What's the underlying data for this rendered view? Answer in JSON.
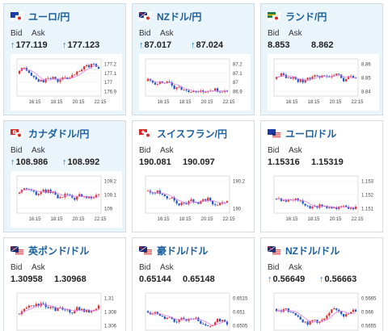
{
  "labels": {
    "bid": "Bid",
    "ask": "Ask"
  },
  "colors": {
    "up": "#e03030",
    "down": "#1e55c8",
    "ma": "#e27be8",
    "link": "#1a5f9e",
    "arrow": "#1a73c9"
  },
  "cards": [
    {
      "name": "ユーロ/円",
      "flag": "eu-jp-flag",
      "bid": "177.119",
      "ask": "177.123",
      "arrow": "↑",
      "ticks_y": [
        "177.2",
        "177.1",
        "177",
        "176.9"
      ],
      "ticks_x": [
        "16:15",
        "18:15",
        "20:15",
        "22:15"
      ]
    },
    {
      "name": "NZドル/円",
      "flag": "nz-jp-flag",
      "bid": "87.017",
      "ask": "87.024",
      "arrow": "↑",
      "ticks_y": [
        "87.2",
        "87.1",
        "87",
        "86.9"
      ],
      "ticks_x": [
        "16:15",
        "18:15",
        "20:15",
        "22:15"
      ]
    },
    {
      "name": "ランド/円",
      "flag": "za-jp-flag",
      "bid": "8.853",
      "ask": "8.862",
      "arrow": "",
      "ticks_y": [
        "8.86",
        "8.85",
        "8.84"
      ],
      "ticks_x": [
        "16:15",
        "18:15",
        "20:15",
        "22:15"
      ]
    },
    {
      "name": "カナダドル/円",
      "flag": "ca-jp-flag",
      "bid": "108.986",
      "ask": "108.992",
      "arrow": "↑",
      "ticks_y": [
        "109.2",
        "109.1",
        "109"
      ],
      "ticks_x": [
        "16:15",
        "18:15",
        "20:15",
        "22:15"
      ]
    },
    {
      "name": "スイスフラン/円",
      "flag": "ch-jp-flag",
      "bid": "190.081",
      "ask": "190.097",
      "arrow": "",
      "ticks_y": [
        "190.2",
        "190"
      ],
      "ticks_x": [
        "16:15",
        "18:15",
        "20:15",
        "22:15"
      ]
    },
    {
      "name": "ユーロ/ドル",
      "flag": "eu-us-flag",
      "bid": "1.15316",
      "ask": "1.15319",
      "arrow": "",
      "ticks_y": [
        "1.153",
        "1.152",
        "1.151"
      ],
      "ticks_x": [
        "16:15",
        "18:15",
        "20:15",
        "22:15"
      ]
    },
    {
      "name": "英ポンド/ドル",
      "flag": "gb-us-flag",
      "bid": "1.30958",
      "ask": "1.30968",
      "arrow": "",
      "ticks_y": [
        "1.31",
        "1.308",
        "1.306"
      ],
      "ticks_x": []
    },
    {
      "name": "豪ドル/ドル",
      "flag": "au-us-flag",
      "bid": "0.65144",
      "ask": "0.65148",
      "arrow": "",
      "ticks_y": [
        "0.6515",
        "0.651",
        "0.6505"
      ],
      "ticks_x": []
    },
    {
      "name": "NZドル/ドル",
      "flag": "nz-us-flag",
      "bid": "0.56649",
      "ask": "0.56663",
      "arrow": "↑",
      "ticks_y": [
        "0.5665",
        "0.566",
        "0.5655"
      ],
      "ticks_x": []
    }
  ]
}
